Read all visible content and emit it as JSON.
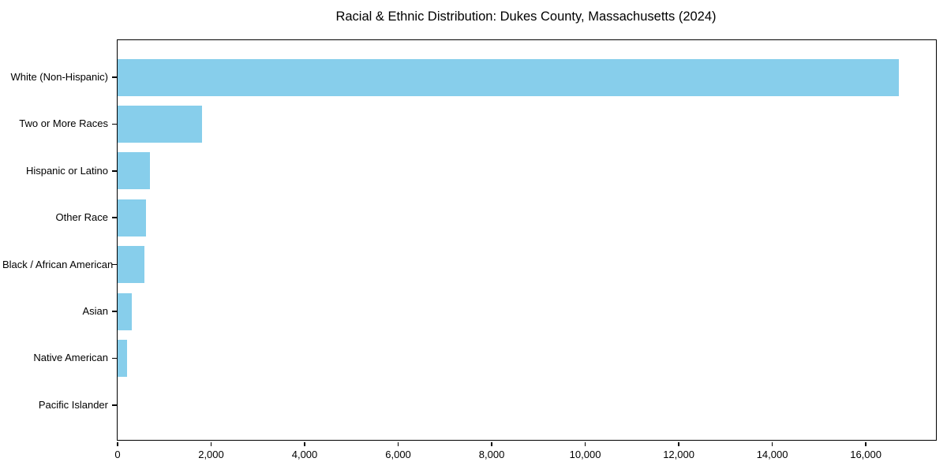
{
  "chart_data": {
    "type": "bar",
    "orientation": "horizontal",
    "title": "Racial & Ethnic Distribution: Dukes County, Massachusetts (2024)",
    "xlabel": "",
    "ylabel": "",
    "categories": [
      "White (Non-Hispanic)",
      "Two or More Races",
      "Hispanic or Latino",
      "Other Race",
      "Black / African American",
      "Asian",
      "Native American",
      "Pacific Islander"
    ],
    "values": [
      16700,
      1810,
      700,
      605,
      570,
      310,
      210,
      0
    ],
    "xlim": [
      0,
      17500
    ],
    "x_ticks": [
      0,
      2000,
      4000,
      6000,
      8000,
      10000,
      12000,
      14000,
      16000
    ],
    "x_tick_labels": [
      "0",
      "2,000",
      "4,000",
      "6,000",
      "8,000",
      "10,000",
      "12,000",
      "14,000",
      "16,000"
    ],
    "bar_color": "#87CEEB",
    "grid": false,
    "legend": null
  }
}
